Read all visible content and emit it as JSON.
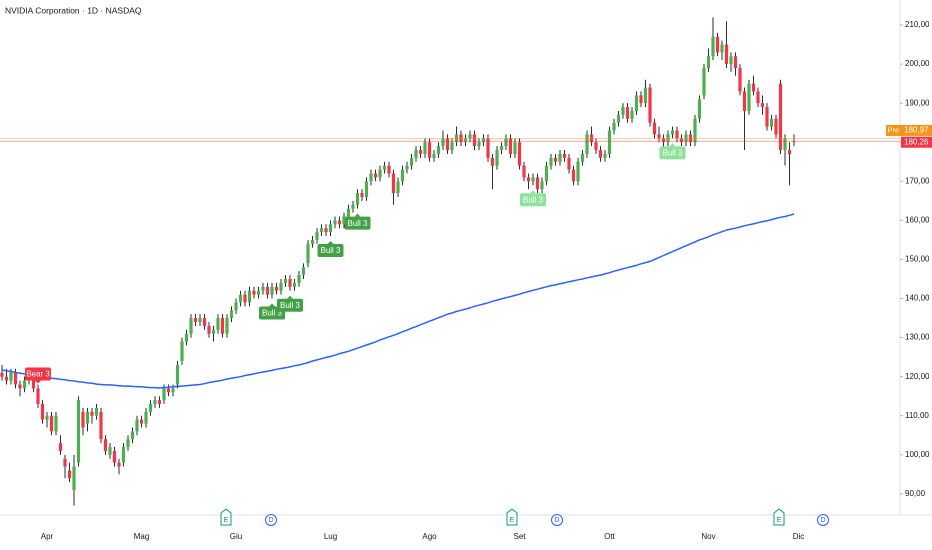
{
  "chart_data": {
    "type": "candlestick",
    "title": "NVIDIA Corporation · 1D · NASDAQ",
    "up_color": "#4caf50",
    "down_color": "#f23645",
    "categories": [
      null,
      null,
      null,
      null,
      null,
      null,
      null,
      null,
      null,
      null,
      "Apr",
      null,
      null,
      null,
      null,
      null,
      null,
      null,
      null,
      null,
      null,
      null,
      null,
      null,
      null,
      null,
      null,
      null,
      null,
      null,
      null,
      "Mag",
      null,
      null,
      null,
      null,
      null,
      null,
      null,
      null,
      null,
      null,
      null,
      null,
      null,
      null,
      null,
      null,
      null,
      null,
      null,
      null,
      "Giu",
      null,
      null,
      null,
      null,
      null,
      null,
      null,
      null,
      null,
      null,
      null,
      null,
      null,
      null,
      null,
      null,
      null,
      null,
      null,
      null,
      "Lug",
      null,
      null,
      null,
      null,
      null,
      null,
      null,
      null,
      null,
      null,
      null,
      null,
      null,
      null,
      null,
      null,
      null,
      null,
      null,
      null,
      null,
      "Ago",
      null,
      null,
      null,
      null,
      null,
      null,
      null,
      null,
      null,
      null,
      null,
      null,
      null,
      null,
      null,
      null,
      null,
      null,
      null,
      "Set",
      null,
      null,
      null,
      null,
      null,
      null,
      null,
      null,
      null,
      null,
      null,
      null,
      null,
      null,
      null,
      null,
      null,
      null,
      null,
      "Ott",
      null,
      null,
      null,
      null,
      null,
      null,
      null,
      null,
      null,
      null,
      null,
      null,
      null,
      null,
      null,
      null,
      null,
      null,
      null,
      null,
      null,
      "Nov",
      null,
      null,
      null,
      null,
      null,
      null,
      null,
      null,
      null,
      null,
      null,
      null,
      null,
      null,
      null,
      null,
      null,
      null,
      null,
      "Dic"
    ],
    "ohlc": [
      [
        121,
        123,
        119,
        120
      ],
      [
        120,
        122,
        118,
        119
      ],
      [
        119,
        122,
        118,
        121
      ],
      [
        121,
        122,
        117,
        118
      ],
      [
        118,
        119,
        115,
        117
      ],
      [
        117,
        120,
        116,
        119
      ],
      [
        119,
        122,
        118,
        121
      ],
      [
        121,
        121,
        116,
        117
      ],
      [
        117,
        118,
        112,
        113
      ],
      [
        113,
        114,
        108,
        109
      ],
      [
        109,
        111,
        107,
        110
      ],
      [
        110,
        111,
        105,
        106
      ],
      [
        106,
        111,
        105,
        110
      ],
      [
        103,
        105,
        100,
        101
      ],
      [
        99,
        100,
        94,
        97
      ],
      [
        96,
        98,
        93,
        94
      ],
      [
        91,
        100,
        87,
        97
      ],
      [
        98,
        115,
        97,
        114
      ],
      [
        111,
        112,
        105,
        107
      ],
      [
        108,
        112,
        106,
        111
      ],
      [
        111,
        112,
        108,
        110
      ],
      [
        110,
        113,
        109,
        112
      ],
      [
        111,
        112,
        103,
        104
      ],
      [
        104,
        105,
        100,
        101
      ],
      [
        100,
        103,
        99,
        102
      ],
      [
        101,
        102,
        97,
        98
      ],
      [
        98,
        99,
        95,
        97
      ],
      [
        98,
        103,
        97,
        102
      ],
      [
        102,
        105,
        101,
        104
      ],
      [
        104,
        107,
        103,
        106
      ],
      [
        106,
        110,
        105,
        109
      ],
      [
        109,
        110,
        107,
        108
      ],
      [
        108,
        112,
        107,
        111
      ],
      [
        111,
        114,
        110,
        113
      ],
      [
        113,
        115,
        112,
        114
      ],
      [
        114,
        115,
        112,
        113
      ],
      [
        114,
        118,
        113,
        117
      ],
      [
        117,
        118,
        115,
        116
      ],
      [
        116,
        118,
        115,
        117
      ],
      [
        118,
        124,
        117,
        123
      ],
      [
        124,
        130,
        123,
        129
      ],
      [
        129,
        132,
        128,
        131
      ],
      [
        131,
        136,
        130,
        135
      ],
      [
        135,
        136,
        133,
        134
      ],
      [
        134,
        136,
        133,
        135
      ],
      [
        135,
        136,
        132,
        133
      ],
      [
        133,
        134,
        130,
        131
      ],
      [
        131,
        133,
        129,
        132
      ],
      [
        132,
        136,
        131,
        135
      ],
      [
        135,
        136,
        130,
        131
      ],
      [
        131,
        136,
        130,
        135
      ],
      [
        135,
        138,
        134,
        137
      ],
      [
        137,
        140,
        136,
        139
      ],
      [
        139,
        142,
        138,
        141
      ],
      [
        141,
        142,
        138,
        139
      ],
      [
        139,
        143,
        138,
        142
      ],
      [
        142,
        143,
        140,
        141
      ],
      [
        141,
        143,
        140,
        142
      ],
      [
        142,
        144,
        141,
        143
      ],
      [
        143,
        144,
        140,
        141
      ],
      [
        141,
        144,
        140,
        143
      ],
      [
        143,
        144,
        141,
        142
      ],
      [
        142,
        145,
        141,
        144
      ],
      [
        144,
        146,
        143,
        145
      ],
      [
        145,
        146,
        142,
        143
      ],
      [
        143,
        145,
        142,
        144
      ],
      [
        144,
        147,
        143,
        146
      ],
      [
        146,
        149,
        145,
        148
      ],
      [
        149,
        155,
        148,
        154
      ],
      [
        154,
        156,
        153,
        155
      ],
      [
        155,
        158,
        154,
        157
      ],
      [
        157,
        159,
        156,
        158
      ],
      [
        158,
        159,
        156,
        157
      ],
      [
        157,
        160,
        156,
        159
      ],
      [
        159,
        161,
        158,
        160
      ],
      [
        160,
        161,
        158,
        159
      ],
      [
        159,
        162,
        158,
        161
      ],
      [
        161,
        164,
        160,
        163
      ],
      [
        163,
        165,
        162,
        164
      ],
      [
        164,
        168,
        163,
        167
      ],
      [
        167,
        168,
        165,
        166
      ],
      [
        166,
        171,
        165,
        170
      ],
      [
        170,
        173,
        169,
        172
      ],
      [
        172,
        173,
        170,
        171
      ],
      [
        171,
        174,
        170,
        173
      ],
      [
        173,
        175,
        172,
        174
      ],
      [
        174,
        175,
        171,
        172
      ],
      [
        172,
        173,
        164,
        167
      ],
      [
        167,
        171,
        166,
        170
      ],
      [
        170,
        174,
        169,
        173
      ],
      [
        173,
        175,
        172,
        174
      ],
      [
        174,
        177,
        173,
        176
      ],
      [
        176,
        179,
        175,
        178
      ],
      [
        178,
        179,
        176,
        177
      ],
      [
        177,
        181,
        176,
        180
      ],
      [
        180,
        181,
        175,
        176
      ],
      [
        176,
        178,
        175,
        177
      ],
      [
        177,
        180,
        176,
        179
      ],
      [
        179,
        183,
        178,
        181
      ],
      [
        181,
        182,
        177,
        178
      ],
      [
        178,
        181,
        177,
        180
      ],
      [
        180,
        184,
        179,
        182
      ],
      [
        182,
        183,
        179,
        180
      ],
      [
        180,
        182,
        179,
        181
      ],
      [
        181,
        183,
        180,
        182
      ],
      [
        182,
        183,
        178,
        179
      ],
      [
        179,
        181,
        178,
        180
      ],
      [
        180,
        182,
        179,
        181
      ],
      [
        181,
        182,
        175,
        176
      ],
      [
        176,
        177,
        168,
        174
      ],
      [
        174,
        179,
        173,
        178
      ],
      [
        178,
        180,
        177,
        179
      ],
      [
        179,
        182,
        178,
        181
      ],
      [
        181,
        182,
        176,
        177
      ],
      [
        177,
        181,
        176,
        180
      ],
      [
        180,
        181,
        173,
        174
      ],
      [
        174,
        175,
        170,
        171
      ],
      [
        171,
        172,
        168,
        170
      ],
      [
        170,
        172,
        169,
        171
      ],
      [
        171,
        172,
        167,
        168
      ],
      [
        168,
        171,
        167,
        170
      ],
      [
        170,
        175,
        169,
        174
      ],
      [
        174,
        177,
        173,
        176
      ],
      [
        176,
        177,
        174,
        175
      ],
      [
        175,
        178,
        174,
        177
      ],
      [
        177,
        178,
        175,
        176
      ],
      [
        176,
        177,
        172,
        173
      ],
      [
        173,
        174,
        169,
        170
      ],
      [
        170,
        176,
        169,
        175
      ],
      [
        175,
        178,
        174,
        177
      ],
      [
        177,
        183,
        176,
        182
      ],
      [
        182,
        184,
        179,
        180
      ],
      [
        180,
        181,
        177,
        178
      ],
      [
        178,
        179,
        175,
        176
      ],
      [
        176,
        178,
        175,
        177
      ],
      [
        177,
        184,
        176,
        183
      ],
      [
        183,
        186,
        182,
        185
      ],
      [
        185,
        188,
        184,
        187
      ],
      [
        187,
        190,
        186,
        189
      ],
      [
        189,
        190,
        185,
        186
      ],
      [
        186,
        189,
        185,
        188
      ],
      [
        188,
        193,
        187,
        192
      ],
      [
        192,
        193,
        189,
        190
      ],
      [
        190,
        196,
        189,
        194
      ],
      [
        194,
        195,
        184,
        185
      ],
      [
        185,
        186,
        181,
        182
      ],
      [
        182,
        184,
        180,
        181
      ],
      [
        181,
        182,
        178,
        180
      ],
      [
        180,
        183,
        179,
        182
      ],
      [
        182,
        184,
        181,
        183
      ],
      [
        183,
        184,
        180,
        181
      ],
      [
        181,
        182,
        179,
        180
      ],
      [
        180,
        183,
        179,
        182
      ],
      [
        182,
        183,
        179,
        180
      ],
      [
        180,
        187,
        179,
        186
      ],
      [
        186,
        192,
        185,
        191
      ],
      [
        192,
        200,
        191,
        199
      ],
      [
        199,
        204,
        198,
        202
      ],
      [
        202,
        212,
        201,
        207
      ],
      [
        207,
        208,
        202,
        203
      ],
      [
        203,
        206,
        201,
        205
      ],
      [
        205,
        211,
        199,
        200
      ],
      [
        200,
        203,
        198,
        202
      ],
      [
        202,
        203,
        197,
        199
      ],
      [
        199,
        200,
        192,
        193
      ],
      [
        193,
        194,
        178,
        188
      ],
      [
        188,
        196,
        187,
        195
      ],
      [
        195,
        197,
        192,
        193
      ],
      [
        193,
        194,
        189,
        190
      ],
      [
        190,
        192,
        187,
        189
      ],
      [
        189,
        190,
        183,
        184
      ],
      [
        184,
        187,
        183,
        186
      ],
      [
        186,
        187,
        181,
        182
      ],
      [
        195,
        196,
        177,
        178
      ],
      [
        178,
        182,
        174,
        181
      ],
      [
        178,
        180,
        169,
        177
      ],
      [
        180,
        182,
        179,
        180.26
      ],
      null,
      null,
      null,
      null
    ],
    "ma": {
      "color": "#2962ff",
      "values": [
        121.7,
        121.5,
        121.3,
        121.1,
        120.9,
        120.7,
        120.6,
        120.4,
        120.2,
        120.0,
        119.8,
        119.6,
        119.5,
        119.3,
        119.2,
        119.0,
        118.9,
        118.7,
        118.6,
        118.4,
        118.3,
        118.1,
        118.0,
        117.9,
        117.9,
        117.8,
        117.7,
        117.6,
        117.6,
        117.5,
        117.4,
        117.4,
        117.3,
        117.2,
        117.2,
        117.1,
        117.2,
        117.3,
        117.4,
        117.5,
        117.6,
        117.7,
        117.8,
        117.9,
        118.0,
        118.2,
        118.5,
        118.7,
        118.9,
        119.1,
        119.4,
        119.6,
        119.8,
        120.0,
        120.3,
        120.5,
        120.7,
        121.0,
        121.2,
        121.4,
        121.6,
        121.9,
        122.1,
        122.3,
        122.5,
        122.8,
        123.0,
        123.3,
        123.6,
        124.0,
        124.3,
        124.6,
        124.9,
        125.2,
        125.5,
        125.9,
        126.2,
        126.5,
        126.9,
        127.3,
        127.7,
        128.1,
        128.5,
        128.9,
        129.4,
        129.8,
        130.2,
        130.6,
        131.0,
        131.5,
        131.9,
        132.4,
        132.8,
        133.3,
        133.7,
        134.2,
        134.6,
        135.1,
        135.5,
        136.0,
        136.3,
        136.7,
        137.0,
        137.3,
        137.6,
        138.0,
        138.3,
        138.6,
        138.9,
        139.3,
        139.6,
        139.9,
        140.2,
        140.5,
        140.8,
        141.1,
        141.5,
        141.8,
        142.1,
        142.4,
        142.7,
        143.0,
        143.3,
        143.5,
        143.8,
        144.0,
        144.3,
        144.5,
        144.8,
        145.0,
        145.3,
        145.5,
        145.8,
        146.0,
        146.3,
        146.6,
        147.0,
        147.3,
        147.6,
        147.9,
        148.2,
        148.5,
        148.9,
        149.2,
        149.5,
        150.0,
        150.5,
        151.0,
        151.5,
        152.0,
        152.5,
        153.0,
        153.5,
        154.0,
        154.5,
        155.0,
        155.4,
        155.8,
        156.3,
        156.7,
        157.1,
        157.5,
        157.8,
        158.0,
        158.3,
        158.6,
        158.9,
        159.1,
        159.4,
        159.7,
        159.9,
        160.2,
        160.5,
        160.8,
        161.0,
        161.3,
        161.6,
        null,
        null,
        null,
        null
      ]
    },
    "signals": [
      "Bear 3",
      "Bull 3",
      "Bull 3",
      "Bull 3",
      "Bull 3",
      "Bull 3",
      "Bull 3"
    ],
    "events": [
      "E",
      "D",
      "E",
      "D",
      "E",
      "D"
    ],
    "price_labels": [
      {
        "tag": "Pre",
        "value": 180.97,
        "label": "180,97",
        "color": "#f7931a"
      },
      {
        "value": 180.26,
        "label": "180,26",
        "color": "#f23645"
      }
    ],
    "ylim": [
      84.6,
      216.4
    ],
    "yticks": [
      {
        "value": 90,
        "label": "90,00"
      },
      {
        "value": 100,
        "label": "100,00"
      },
      {
        "value": 110,
        "label": "110,00"
      },
      {
        "value": 120,
        "label": "120,00"
      },
      {
        "value": 130,
        "label": "130,00"
      },
      {
        "value": 140,
        "label": "140,00"
      },
      {
        "value": 150,
        "label": "150,00"
      },
      {
        "value": 160,
        "label": "160,00"
      },
      {
        "value": 170,
        "label": "170,00"
      },
      {
        "value": 180,
        "label": "180,00"
      },
      {
        "value": 190,
        "label": "190,00"
      },
      {
        "value": 200,
        "label": "200,00"
      },
      {
        "value": 210,
        "label": "210,00"
      }
    ]
  }
}
